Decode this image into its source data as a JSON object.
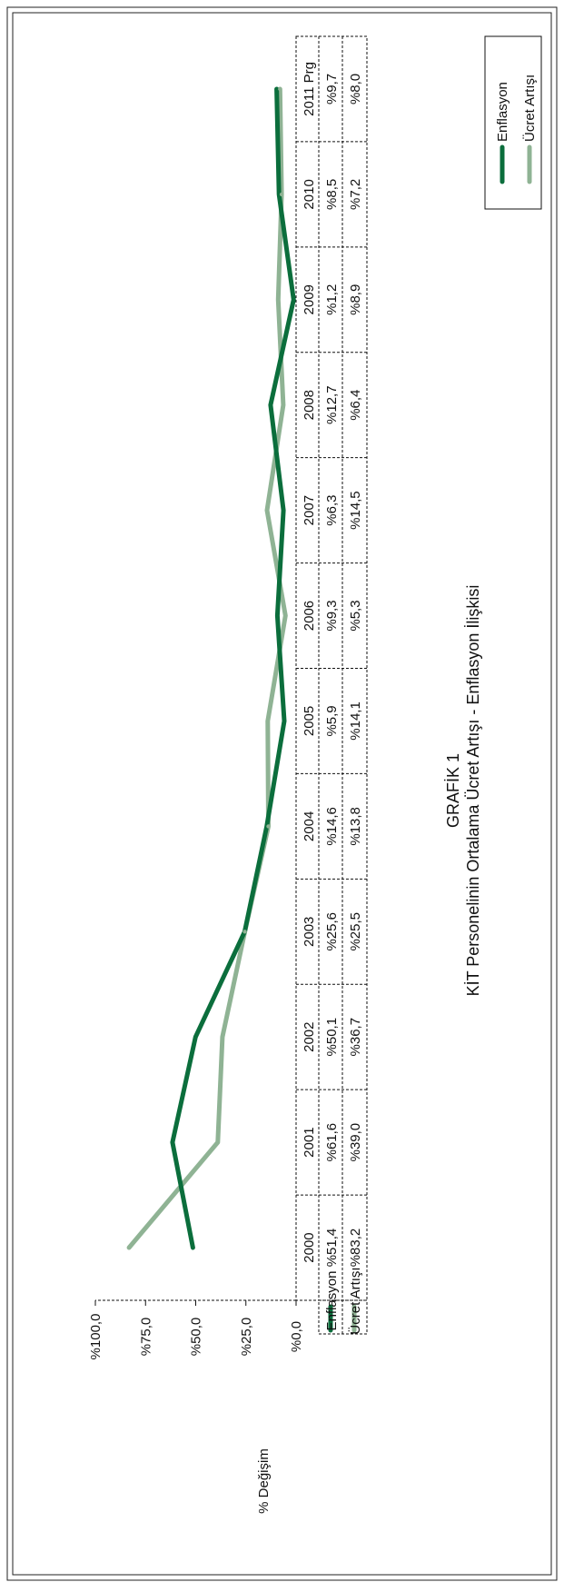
{
  "chart_data": {
    "type": "line",
    "title": "GRAFİK 1",
    "subtitle": "KİT Personelinin Ortalama Ücret Artışı - Enflasyon İlişkisi",
    "ylabel": "% Değişim",
    "xlabel": "",
    "ylim": [
      0,
      100
    ],
    "y_ticks": [
      {
        "value": 100,
        "label": "%100,0"
      },
      {
        "value": 75,
        "label": "%75,0"
      },
      {
        "value": 50,
        "label": "%50,0"
      },
      {
        "value": 25,
        "label": "%25,0"
      },
      {
        "value": 0,
        "label": "%0,0"
      }
    ],
    "categories": [
      "2000",
      "2001",
      "2002",
      "2003",
      "2004",
      "2005",
      "2006",
      "2007",
      "2008",
      "2009",
      "2010",
      "2011 Prg"
    ],
    "series": [
      {
        "name": "Enflasyon",
        "color": "#0b6e3c",
        "values": [
          51.4,
          61.6,
          50.1,
          25.6,
          14.6,
          5.9,
          9.3,
          6.3,
          12.7,
          1.2,
          8.5,
          9.7
        ],
        "labels": [
          "%51,4",
          "%61,6",
          "%50,1",
          "%25,6",
          "%14,6",
          "%5,9",
          "%9,3",
          "%6,3",
          "%12,7",
          "%1,2",
          "%8,5",
          "%9,7"
        ]
      },
      {
        "name": "Ücret Artışı",
        "color": "#8fb394",
        "values": [
          83.2,
          39.0,
          36.7,
          25.5,
          13.8,
          14.1,
          5.3,
          14.5,
          6.4,
          8.9,
          7.2,
          8.0
        ],
        "labels": [
          "%83,2",
          "%39,0",
          "%36,7",
          "%25,5",
          "%13,8",
          "%14,1",
          "%5,3",
          "%14,5",
          "%6,4",
          "%8,9",
          "%7,2",
          "%8,0"
        ]
      }
    ],
    "grid": false,
    "legend": "right",
    "orientation": "rotated-90"
  }
}
